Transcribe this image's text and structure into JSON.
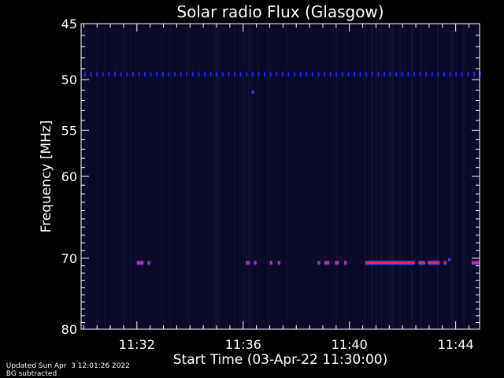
{
  "chart_data": {
    "type": "heatmap",
    "title": "Solar radio Flux (Glasgow)",
    "xlabel": "Start Time (03-Apr-22 11:30:00)",
    "ylabel": "Frequency [MHz]",
    "x_ticks": [
      "11:32",
      "11:36",
      "11:40",
      "11:44"
    ],
    "x_tick_minutes": [
      32,
      36,
      40,
      44
    ],
    "xlim_minutes": [
      29.9,
      44.9
    ],
    "y_ticks": [
      45,
      50,
      55,
      60,
      70,
      80
    ],
    "ylim": [
      45,
      80
    ],
    "scale": "log",
    "background_color": "#0a0a2a",
    "band_50_color": "#2222ff",
    "band_70_color": "#ff2255",
    "band_50": {
      "frequency": 49.5,
      "type": "periodic"
    },
    "band_70": {
      "frequency": 70.6,
      "intervals_minutes": [
        [
          32.0,
          32.25
        ],
        [
          32.4,
          32.5
        ],
        [
          36.1,
          36.25
        ],
        [
          36.4,
          36.5
        ],
        [
          37.0,
          37.1
        ],
        [
          37.3,
          37.4
        ],
        [
          38.8,
          38.9
        ],
        [
          39.05,
          39.25
        ],
        [
          39.45,
          39.6
        ],
        [
          39.8,
          39.9
        ],
        [
          40.6,
          42.45
        ],
        [
          42.6,
          42.85
        ],
        [
          42.95,
          43.4
        ],
        [
          43.55,
          43.65
        ],
        [
          44.6,
          44.9
        ]
      ]
    },
    "spikes": [
      {
        "minute": 36.35,
        "frequency": 51.2
      },
      {
        "minute": 43.75,
        "frequency": 70.2
      }
    ]
  },
  "footer": {
    "updated": "Updated Sun Apr  3 12:01:26 2022",
    "note": "BG subtracted"
  }
}
